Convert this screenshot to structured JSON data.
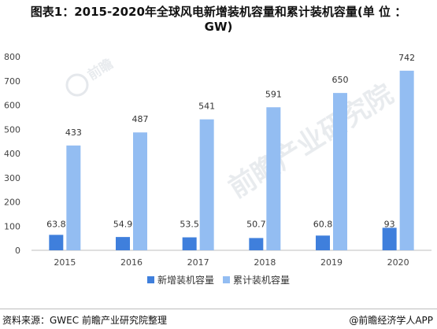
{
  "title_line1": "图表1：2015-2020年全球风电新增装机容量和累计装机容量(单 位 ：",
  "title_line2": "GW)",
  "source_text": "资料来源：GWEC 前瞻产业研究院整理",
  "brand_text": "@前瞻经济学人APP",
  "watermark": {
    "text": "前瞻产业研究院",
    "logo_text": "前瞻"
  },
  "chart_data": {
    "type": "bar",
    "categories": [
      "2015",
      "2016",
      "2017",
      "2018",
      "2019",
      "2020"
    ],
    "series": [
      {
        "name": "新增装机容量",
        "values": [
          63.8,
          54.9,
          53.5,
          50.7,
          60.8,
          93
        ],
        "labels": [
          "63.8",
          "54.9",
          "53.5",
          "50.7",
          "60.8",
          "93"
        ],
        "color": "#3f7fdc"
      },
      {
        "name": "累计装机容量",
        "values": [
          433,
          487,
          541,
          591,
          650,
          742
        ],
        "labels": [
          "433",
          "487",
          "541",
          "591",
          "650",
          "742"
        ],
        "color": "#93bdf2"
      }
    ],
    "ylim": [
      0,
      800
    ],
    "yticks": [
      "0",
      "100",
      "200",
      "300",
      "400",
      "500",
      "600",
      "700",
      "800"
    ],
    "grid": false,
    "legend_position": "bottom"
  }
}
